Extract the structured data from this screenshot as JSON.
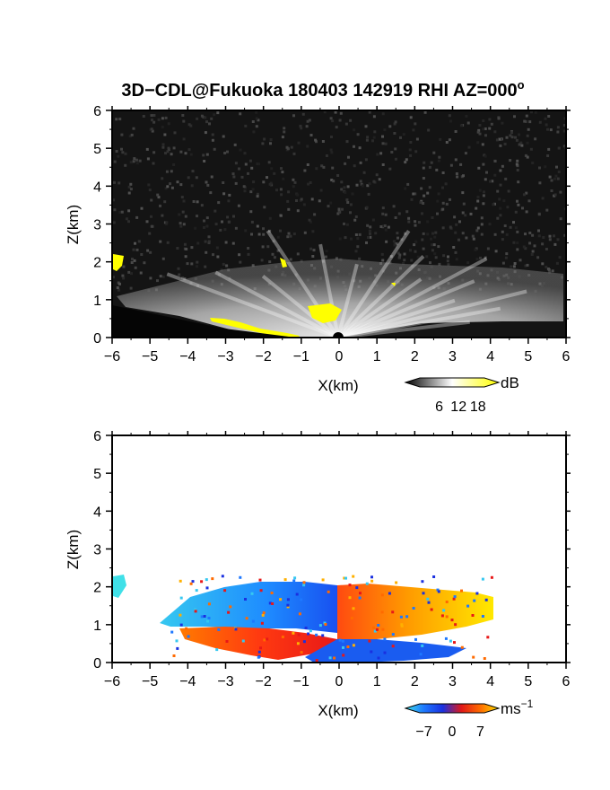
{
  "title": "3D−CDL@Fukuoka 180403 142919 RHI AZ=000",
  "title_superscript": "o",
  "chart_data": [
    {
      "type": "heatmap",
      "name": "backscatter",
      "xlabel": "X(km)",
      "ylabel": "Z(km)",
      "xlim": [
        -6,
        6
      ],
      "ylim": [
        0,
        6
      ],
      "x_ticks": [
        "−6",
        "−5",
        "−4",
        "−3",
        "−2",
        "−1",
        "0",
        "1",
        "2",
        "3",
        "4",
        "5",
        "6"
      ],
      "y_ticks": [
        "0",
        "1",
        "2",
        "3",
        "4",
        "5",
        "6"
      ],
      "colorbar": {
        "unit": "dB",
        "unit_sup": "",
        "tick_labels": [
          "6",
          "12",
          "18"
        ],
        "range": [
          0,
          20
        ],
        "colors": [
          "#000000",
          "#ffffff",
          "#ffff00"
        ]
      },
      "colors": {
        "background": "#141414",
        "echo": "#d8d8d8",
        "saturated": "#ffff00",
        "radar": "#000000"
      }
    },
    {
      "type": "heatmap",
      "name": "doppler-velocity",
      "xlabel": "X(km)",
      "ylabel": "Z(km)",
      "xlim": [
        -6,
        6
      ],
      "ylim": [
        0,
        6
      ],
      "x_ticks": [
        "−6",
        "−5",
        "−4",
        "−3",
        "−2",
        "−1",
        "0",
        "1",
        "2",
        "3",
        "4",
        "5",
        "6"
      ],
      "y_ticks": [
        "0",
        "1",
        "2",
        "3",
        "4",
        "5",
        "6"
      ],
      "colorbar": {
        "unit": "ms",
        "unit_sup": "−1",
        "tick_labels": [
          "−7",
          "0",
          "7"
        ],
        "range": [
          -8,
          8
        ],
        "colors": [
          "#40e0e8",
          "#1e78ff",
          "#1a30e0",
          "#e01818",
          "#ff6a00",
          "#ffe000"
        ]
      },
      "colors": {
        "negative": "#1e78ff",
        "positive": "#ff6a00",
        "far_positive": "#ffd000",
        "cyan": "#40e0e8"
      }
    }
  ]
}
